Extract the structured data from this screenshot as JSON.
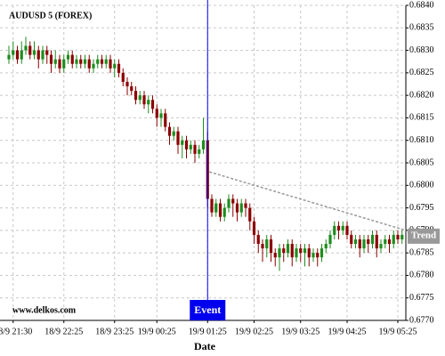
{
  "chart_data": {
    "type": "candlestick",
    "title": "AUDUSD 5 (FOREX)",
    "watermark": "www.delkos.com",
    "xlabel": "Date",
    "up_color": "#1e8c1e",
    "down_color": "#8b0000",
    "grid": true,
    "categories": [
      null,
      "18/9 21:30",
      null,
      null,
      null,
      null,
      null,
      null,
      null,
      null,
      null,
      null,
      null,
      "18/9 22:25",
      null,
      null,
      null,
      null,
      null,
      null,
      null,
      null,
      null,
      null,
      null,
      "18/9 23:25",
      null,
      null,
      null,
      null,
      null,
      null,
      null,
      null,
      null,
      "19/9 00:25",
      null,
      null,
      null,
      null,
      null,
      null,
      null,
      null,
      null,
      null,
      null,
      "19/9 01:25",
      null,
      null,
      null,
      null,
      null,
      null,
      null,
      null,
      null,
      null,
      "19/9 02:25",
      null,
      null,
      null,
      null,
      null,
      null,
      null,
      null,
      null,
      null,
      "19/9 03:25",
      null,
      null,
      null,
      null,
      null,
      null,
      null,
      null,
      null,
      null,
      "19/9 04:25",
      null,
      null,
      null,
      null,
      null,
      null,
      null,
      null,
      null,
      null,
      null,
      "19/9 05:25",
      null
    ],
    "open": [
      0.6828,
      0.6829,
      0.683,
      0.6828,
      0.683,
      0.6831,
      0.6829,
      0.683,
      0.6828,
      0.683,
      0.6829,
      0.6827,
      0.6828,
      0.6826,
      0.6828,
      0.6829,
      0.6827,
      0.6828,
      0.6827,
      0.6828,
      0.6826,
      0.6827,
      0.6828,
      0.6827,
      0.6828,
      0.6826,
      0.6827,
      0.6825,
      0.6823,
      0.6822,
      0.6821,
      0.6819,
      0.682,
      0.6818,
      0.6819,
      0.6817,
      0.6815,
      0.6816,
      0.6813,
      0.6811,
      0.6812,
      0.6809,
      0.681,
      0.6808,
      0.6809,
      0.6807,
      0.6808,
      0.681,
      0.6797,
      0.6794,
      0.6796,
      0.6793,
      0.6795,
      0.6797,
      0.6796,
      0.6794,
      0.6796,
      0.6795,
      0.6792,
      0.6789,
      0.6787,
      0.6786,
      0.6788,
      0.6785,
      0.6784,
      0.6786,
      0.6785,
      0.6787,
      0.6784,
      0.6786,
      0.6785,
      0.6786,
      0.6784,
      0.6785,
      0.6784,
      0.6786,
      0.6787,
      0.6789,
      0.6791,
      0.679,
      0.6791,
      0.6789,
      0.6787,
      0.6788,
      0.6786,
      0.6788,
      0.6787,
      0.6789,
      0.6786,
      0.6787,
      0.6788,
      0.6787,
      0.6789,
      0.6788
    ],
    "high": [
      0.6831,
      0.6832,
      0.6831,
      0.6832,
      0.6833,
      0.6832,
      0.6832,
      0.6831,
      0.6831,
      0.6831,
      0.683,
      0.683,
      0.6829,
      0.6829,
      0.683,
      0.683,
      0.6829,
      0.6829,
      0.6829,
      0.6829,
      0.6828,
      0.6829,
      0.6829,
      0.6829,
      0.6829,
      0.6828,
      0.6828,
      0.6826,
      0.6824,
      0.6823,
      0.6822,
      0.6821,
      0.6821,
      0.682,
      0.682,
      0.6818,
      0.6817,
      0.6817,
      0.6814,
      0.6813,
      0.6813,
      0.6811,
      0.6811,
      0.681,
      0.681,
      0.6809,
      0.6815,
      0.6812,
      0.6798,
      0.6797,
      0.6797,
      0.6796,
      0.6798,
      0.6798,
      0.6797,
      0.6797,
      0.6797,
      0.6796,
      0.6793,
      0.679,
      0.6788,
      0.6789,
      0.6789,
      0.6786,
      0.6787,
      0.6787,
      0.6788,
      0.6788,
      0.6787,
      0.6787,
      0.6787,
      0.6787,
      0.6786,
      0.6786,
      0.6787,
      0.6788,
      0.679,
      0.6792,
      0.6792,
      0.6792,
      0.6792,
      0.679,
      0.6789,
      0.6789,
      0.6789,
      0.6789,
      0.679,
      0.679,
      0.6788,
      0.6789,
      0.6789,
      0.679,
      0.679,
      0.679
    ],
    "low": [
      0.6827,
      0.6828,
      0.6827,
      0.6827,
      0.6829,
      0.6828,
      0.6828,
      0.6826,
      0.6827,
      0.6827,
      0.6825,
      0.6826,
      0.6825,
      0.6825,
      0.6827,
      0.6826,
      0.6826,
      0.6826,
      0.6826,
      0.6825,
      0.6825,
      0.6826,
      0.6826,
      0.6826,
      0.6825,
      0.6824,
      0.6824,
      0.6822,
      0.682,
      0.682,
      0.6818,
      0.6818,
      0.6817,
      0.6816,
      0.6816,
      0.6813,
      0.6813,
      0.6812,
      0.6809,
      0.681,
      0.6807,
      0.6806,
      0.6806,
      0.6807,
      0.6805,
      0.6806,
      0.6807,
      0.6795,
      0.6793,
      0.6793,
      0.6792,
      0.6792,
      0.6794,
      0.6793,
      0.6792,
      0.6793,
      0.6793,
      0.679,
      0.6787,
      0.6785,
      0.6783,
      0.6784,
      0.6783,
      0.6782,
      0.6781,
      0.6783,
      0.6784,
      0.6782,
      0.6783,
      0.6783,
      0.6782,
      0.6782,
      0.6783,
      0.6782,
      0.6783,
      0.6785,
      0.6786,
      0.6788,
      0.6788,
      0.6789,
      0.6788,
      0.6786,
      0.6786,
      0.6784,
      0.6785,
      0.6785,
      0.6786,
      0.6784,
      0.6785,
      0.6786,
      0.6785,
      0.6786,
      0.6787,
      0.6787
    ],
    "close": [
      0.6829,
      0.683,
      0.6828,
      0.683,
      0.6831,
      0.6829,
      0.683,
      0.6828,
      0.683,
      0.6829,
      0.6827,
      0.6828,
      0.6826,
      0.6828,
      0.6829,
      0.6827,
      0.6828,
      0.6827,
      0.6828,
      0.6826,
      0.6827,
      0.6828,
      0.6827,
      0.6828,
      0.6826,
      0.6827,
      0.6825,
      0.6823,
      0.6822,
      0.6821,
      0.6819,
      0.682,
      0.6818,
      0.6819,
      0.6817,
      0.6815,
      0.6816,
      0.6813,
      0.6811,
      0.6812,
      0.6809,
      0.681,
      0.6808,
      0.6809,
      0.6807,
      0.6808,
      0.681,
      0.6797,
      0.6794,
      0.6796,
      0.6793,
      0.6795,
      0.6797,
      0.6796,
      0.6794,
      0.6796,
      0.6795,
      0.6792,
      0.6789,
      0.6787,
      0.6786,
      0.6788,
      0.6785,
      0.6784,
      0.6786,
      0.6785,
      0.6787,
      0.6784,
      0.6786,
      0.6785,
      0.6786,
      0.6784,
      0.6785,
      0.6784,
      0.6786,
      0.6787,
      0.6789,
      0.6791,
      0.679,
      0.6791,
      0.6789,
      0.6787,
      0.6788,
      0.6786,
      0.6788,
      0.6787,
      0.6789,
      0.6786,
      0.6787,
      0.6788,
      0.6787,
      0.6789,
      0.6788,
      0.6789
    ],
    "ylim": [
      0.677,
      0.684
    ],
    "yticks": [
      {
        "value": 0.677,
        "label": "0.6770"
      },
      0.6775,
      {
        "value": 0.678,
        "label": "0.6780"
      },
      0.6785,
      {
        "value": 0.679,
        "label": "0.6790"
      },
      0.6795,
      {
        "value": 0.68,
        "label": "0.6800"
      },
      0.6805,
      {
        "value": 0.681,
        "label": "0.6810"
      },
      0.6815,
      {
        "value": 0.682,
        "label": "0.6820"
      },
      0.6825,
      {
        "value": 0.683,
        "label": "0.6830"
      },
      0.6835,
      {
        "value": 0.684,
        "label": "0.6840"
      }
    ],
    "event": {
      "label": "Event",
      "index": 47,
      "color": "#0000ee"
    },
    "trend": {
      "label": "Trend",
      "start_index": 47,
      "end_index": 93,
      "values": [
        0.6803,
        0.679
      ],
      "color": "#999999"
    }
  }
}
